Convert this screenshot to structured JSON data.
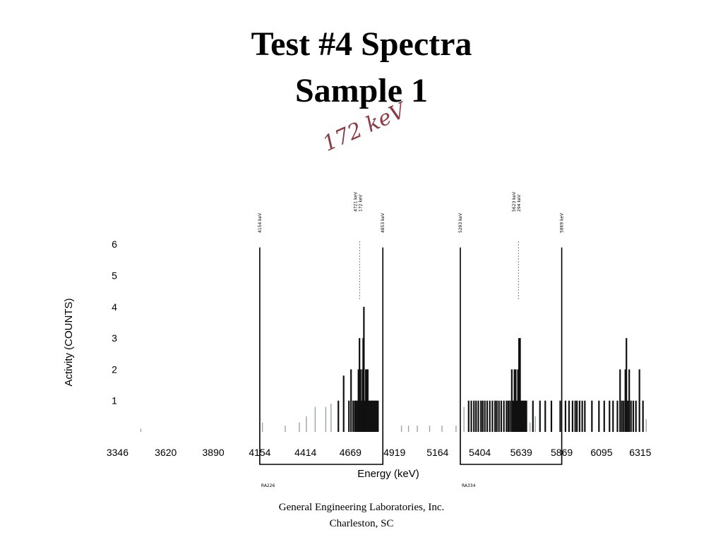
{
  "slide": {
    "title_line1": "Test #4 Spectra",
    "title_line2": "Sample 1",
    "handwritten_note": "172 keV",
    "footer_line1": "General Engineering Laboratories, Inc.",
    "footer_line2": "Charleston, SC"
  },
  "chart_data": {
    "type": "bar",
    "title": "",
    "xlabel": "Energy (keV)",
    "ylabel": "Activity (COUNTS)",
    "xlim": [
      3240,
      6400
    ],
    "ylim": [
      0,
      6
    ],
    "x_ticks": [
      3346,
      3620,
      3890,
      4154,
      4414,
      4669,
      4919,
      5164,
      5404,
      5639,
      5869,
      6095,
      6315
    ],
    "y_ticks": [
      1,
      2,
      3,
      4,
      5,
      6
    ],
    "grid": false,
    "regions_of_interest": [
      {
        "start": 4154,
        "end": 4853,
        "start_label": "4154 keV",
        "end_label": "4853 keV",
        "bottom_label": "RA226"
      },
      {
        "start": 5293,
        "end": 5869,
        "start_label": "5293 keV",
        "end_label": "5869 keV",
        "bottom_label": "RA334"
      }
    ],
    "peak_markers": [
      {
        "x": 4721,
        "energy_label": "4721 keV",
        "gamma_label": "172 keV"
      },
      {
        "x": 5623,
        "energy_label": "5623 keV",
        "gamma_label": "294 keV"
      }
    ],
    "series": [
      {
        "values": [
          {
            "x": 3480,
            "y": 0.1
          },
          {
            "x": 4170,
            "y": 0.3
          },
          {
            "x": 4300,
            "y": 0.2
          },
          {
            "x": 4380,
            "y": 0.3
          },
          {
            "x": 4420,
            "y": 0.5
          },
          {
            "x": 4470,
            "y": 0.8
          },
          {
            "x": 4530,
            "y": 0.8
          },
          {
            "x": 4560,
            "y": 0.9
          },
          {
            "x": 4600,
            "y": 1
          },
          {
            "x": 4630,
            "y": 1.8
          },
          {
            "x": 4660,
            "y": 1
          },
          {
            "x": 4672,
            "y": 2
          },
          {
            "x": 4684,
            "y": 1
          },
          {
            "x": 4694,
            "y": 1
          },
          {
            "x": 4700,
            "y": 1
          },
          {
            "x": 4708,
            "y": 1
          },
          {
            "x": 4714,
            "y": 2
          },
          {
            "x": 4720,
            "y": 3
          },
          {
            "x": 4726,
            "y": 2
          },
          {
            "x": 4730,
            "y": 1
          },
          {
            "x": 4737,
            "y": 2
          },
          {
            "x": 4741,
            "y": 3
          },
          {
            "x": 4745,
            "y": 4
          },
          {
            "x": 4750,
            "y": 1
          },
          {
            "x": 4756,
            "y": 2
          },
          {
            "x": 4762,
            "y": 2
          },
          {
            "x": 4767,
            "y": 2
          },
          {
            "x": 4773,
            "y": 1
          },
          {
            "x": 4780,
            "y": 1
          },
          {
            "x": 4786,
            "y": 1
          },
          {
            "x": 4793,
            "y": 1
          },
          {
            "x": 4800,
            "y": 1
          },
          {
            "x": 4806,
            "y": 1
          },
          {
            "x": 4812,
            "y": 1
          },
          {
            "x": 4818,
            "y": 1
          },
          {
            "x": 4825,
            "y": 1
          },
          {
            "x": 4960,
            "y": 0.2
          },
          {
            "x": 5000,
            "y": 0.2
          },
          {
            "x": 5050,
            "y": 0.2
          },
          {
            "x": 5120,
            "y": 0.2
          },
          {
            "x": 5190,
            "y": 0.2
          },
          {
            "x": 5270,
            "y": 0.2
          },
          {
            "x": 5315,
            "y": 0.8
          },
          {
            "x": 5340,
            "y": 1
          },
          {
            "x": 5355,
            "y": 1
          },
          {
            "x": 5370,
            "y": 1
          },
          {
            "x": 5382,
            "y": 1
          },
          {
            "x": 5395,
            "y": 1
          },
          {
            "x": 5410,
            "y": 1
          },
          {
            "x": 5420,
            "y": 1
          },
          {
            "x": 5432,
            "y": 1
          },
          {
            "x": 5445,
            "y": 1
          },
          {
            "x": 5460,
            "y": 1
          },
          {
            "x": 5475,
            "y": 1
          },
          {
            "x": 5490,
            "y": 1
          },
          {
            "x": 5500,
            "y": 1
          },
          {
            "x": 5512,
            "y": 1
          },
          {
            "x": 5525,
            "y": 1
          },
          {
            "x": 5540,
            "y": 1
          },
          {
            "x": 5555,
            "y": 1
          },
          {
            "x": 5565,
            "y": 1
          },
          {
            "x": 5575,
            "y": 1
          },
          {
            "x": 5585,
            "y": 2
          },
          {
            "x": 5593,
            "y": 1
          },
          {
            "x": 5600,
            "y": 2
          },
          {
            "x": 5607,
            "y": 2
          },
          {
            "x": 5614,
            "y": 1
          },
          {
            "x": 5620,
            "y": 2
          },
          {
            "x": 5626,
            "y": 3
          },
          {
            "x": 5632,
            "y": 3
          },
          {
            "x": 5638,
            "y": 1
          },
          {
            "x": 5644,
            "y": 1
          },
          {
            "x": 5650,
            "y": 1
          },
          {
            "x": 5656,
            "y": 1
          },
          {
            "x": 5662,
            "y": 1
          },
          {
            "x": 5668,
            "y": 1
          },
          {
            "x": 5690,
            "y": 0.3
          },
          {
            "x": 5705,
            "y": 1
          },
          {
            "x": 5720,
            "y": 0.5
          },
          {
            "x": 5745,
            "y": 1
          },
          {
            "x": 5775,
            "y": 1
          },
          {
            "x": 5810,
            "y": 1
          },
          {
            "x": 5860,
            "y": 1
          },
          {
            "x": 5890,
            "y": 1
          },
          {
            "x": 5910,
            "y": 1
          },
          {
            "x": 5930,
            "y": 1
          },
          {
            "x": 5945,
            "y": 1
          },
          {
            "x": 5955,
            "y": 1
          },
          {
            "x": 5970,
            "y": 1
          },
          {
            "x": 5985,
            "y": 1
          },
          {
            "x": 6000,
            "y": 1
          },
          {
            "x": 6040,
            "y": 1
          },
          {
            "x": 6080,
            "y": 1
          },
          {
            "x": 6110,
            "y": 1
          },
          {
            "x": 6140,
            "y": 1
          },
          {
            "x": 6160,
            "y": 1
          },
          {
            "x": 6185,
            "y": 1
          },
          {
            "x": 6200,
            "y": 2
          },
          {
            "x": 6210,
            "y": 1
          },
          {
            "x": 6220,
            "y": 1
          },
          {
            "x": 6230,
            "y": 2
          },
          {
            "x": 6236,
            "y": 3
          },
          {
            "x": 6244,
            "y": 1
          },
          {
            "x": 6252,
            "y": 2
          },
          {
            "x": 6262,
            "y": 1
          },
          {
            "x": 6275,
            "y": 1
          },
          {
            "x": 6290,
            "y": 1
          },
          {
            "x": 6310,
            "y": 2
          },
          {
            "x": 6330,
            "y": 1
          },
          {
            "x": 6350,
            "y": 0.4
          }
        ]
      }
    ]
  }
}
